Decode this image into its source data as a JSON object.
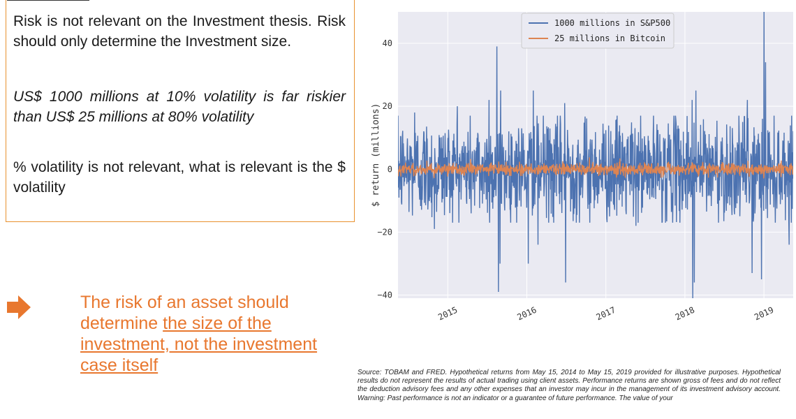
{
  "textbox": {
    "para1": "Risk is not relevant on the Investment thesis. Risk should only determine the Investment size.",
    "para2": "US$ 1000 millions at 10% volatility is far riskier than US$ 25 millions at 80% volatility",
    "para3": "% volatility is not relevant, what is relevant is the $ volatility"
  },
  "conclusion": {
    "lead": "The risk of an asset should determine ",
    "underlined": "the size of the investment, not the investment case itself"
  },
  "source_note": "Source: TOBAM and FRED. Hypothetical returns from May 15, 2014 to May 15, 2019 provided for illustrative purposes. Hypothetical results do not represent the results of actual trading using client assets. Performance returns are shown gross of fees and do not reflect the deduction advisory fees and any other expenses that an investor may incur in the management of its investment advisory account. Warning: Past performance is not an indicator or a guarantee of future performance. The value of your",
  "colors": {
    "accent": "#e8772e",
    "series_sp500": "#4c72b0",
    "series_btc": "#dd8452",
    "plot_bg": "#eaeaf2"
  },
  "chart_data": {
    "type": "line",
    "title": "",
    "xlabel": "",
    "ylabel": "$ return (millions)",
    "xlim": [
      2014.37,
      2019.37
    ],
    "ylim": [
      -41,
      50
    ],
    "x_ticks": [
      {
        "value": 2015.0,
        "label": "2015"
      },
      {
        "value": 2016.0,
        "label": "2016"
      },
      {
        "value": 2017.0,
        "label": "2017"
      },
      {
        "value": 2018.0,
        "label": "2018"
      },
      {
        "value": 2019.0,
        "label": "2019"
      }
    ],
    "y_ticks": [
      {
        "value": -40,
        "label": "−40"
      },
      {
        "value": -20,
        "label": "−20"
      },
      {
        "value": 0,
        "label": "0"
      },
      {
        "value": 20,
        "label": "20"
      },
      {
        "value": 40,
        "label": "40"
      }
    ],
    "grid": true,
    "legend_position": "top-center",
    "series": [
      {
        "name": "1000 millions in S&P500",
        "approx_daily_std": 8,
        "notable_points": [
          {
            "x": 2014.58,
            "y": 18
          },
          {
            "x": 2014.83,
            "y": -19
          },
          {
            "x": 2015.12,
            "y": 20
          },
          {
            "x": 2015.52,
            "y": 22
          },
          {
            "x": 2015.62,
            "y": 39
          },
          {
            "x": 2015.64,
            "y": -39
          },
          {
            "x": 2015.66,
            "y": -30
          },
          {
            "x": 2015.67,
            "y": 25
          },
          {
            "x": 2016.02,
            "y": -30
          },
          {
            "x": 2016.08,
            "y": 25
          },
          {
            "x": 2016.14,
            "y": -24
          },
          {
            "x": 2016.48,
            "y": 21
          },
          {
            "x": 2016.49,
            "y": -36
          },
          {
            "x": 2017.38,
            "y": -18
          },
          {
            "x": 2018.09,
            "y": 22
          },
          {
            "x": 2018.1,
            "y": -41
          },
          {
            "x": 2018.12,
            "y": -36
          },
          {
            "x": 2018.14,
            "y": 25
          },
          {
            "x": 2018.79,
            "y": 22
          },
          {
            "x": 2018.85,
            "y": -33
          },
          {
            "x": 2018.97,
            "y": -35
          },
          {
            "x": 2019.0,
            "y": 50
          },
          {
            "x": 2019.02,
            "y": 34
          },
          {
            "x": 2019.32,
            "y": -24
          }
        ]
      },
      {
        "name": "25 millions in Bitcoin",
        "approx_daily_std": 1,
        "notable_points": []
      }
    ]
  }
}
